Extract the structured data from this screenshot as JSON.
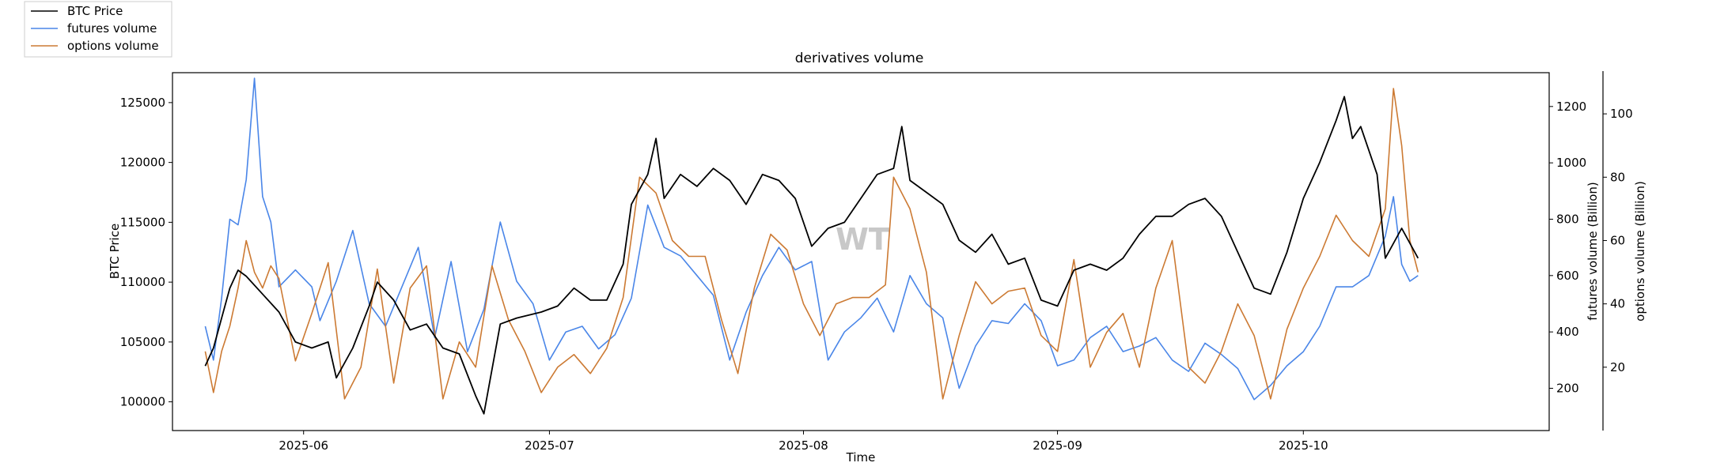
{
  "chart_data": {
    "type": "line",
    "title": "derivatives volume",
    "xlabel": "Time",
    "watermark": "WT",
    "x_range": [
      "2025-05-16",
      "2025-10-31"
    ],
    "x_ticks": [
      {
        "date": "2025-06-01",
        "label": "2025-06"
      },
      {
        "date": "2025-07-01",
        "label": "2025-07"
      },
      {
        "date": "2025-08-01",
        "label": "2025-08"
      },
      {
        "date": "2025-09-01",
        "label": "2025-09"
      },
      {
        "date": "2025-10-01",
        "label": "2025-10"
      }
    ],
    "legend_position": "top-left",
    "grid": false,
    "axes": {
      "left": {
        "label": "BTC Price",
        "range": [
          97600,
          127500
        ],
        "ticks": [
          100000,
          105000,
          110000,
          115000,
          120000,
          125000
        ]
      },
      "right": {
        "label": "futures volume (Billion)",
        "range": [
          50,
          1320
        ],
        "ticks": [
          200,
          400,
          600,
          800,
          1000,
          1200
        ]
      },
      "right2": {
        "label": "options volume (Billion)",
        "range": [
          0,
          113
        ],
        "ticks": [
          20,
          40,
          60,
          80,
          100
        ]
      }
    },
    "series": [
      {
        "name": "BTC Price",
        "axis": "left",
        "color": "#000000",
        "points": [
          [
            "2025-05-20",
            103000
          ],
          [
            "2025-05-21",
            104500
          ],
          [
            "2025-05-22",
            107000
          ],
          [
            "2025-05-23",
            109500
          ],
          [
            "2025-05-24",
            111000
          ],
          [
            "2025-05-25",
            110500
          ],
          [
            "2025-05-27",
            109000
          ],
          [
            "2025-05-29",
            107500
          ],
          [
            "2025-05-31",
            105000
          ],
          [
            "2025-06-02",
            104500
          ],
          [
            "2025-06-04",
            105000
          ],
          [
            "2025-06-05",
            102000
          ],
          [
            "2025-06-07",
            104500
          ],
          [
            "2025-06-09",
            108000
          ],
          [
            "2025-06-10",
            110000
          ],
          [
            "2025-06-12",
            108500
          ],
          [
            "2025-06-14",
            106000
          ],
          [
            "2025-06-16",
            106500
          ],
          [
            "2025-06-18",
            104500
          ],
          [
            "2025-06-20",
            104000
          ],
          [
            "2025-06-22",
            100500
          ],
          [
            "2025-06-23",
            99000
          ],
          [
            "2025-06-25",
            106500
          ],
          [
            "2025-06-27",
            107000
          ],
          [
            "2025-06-30",
            107500
          ],
          [
            "2025-07-02",
            108000
          ],
          [
            "2025-07-04",
            109500
          ],
          [
            "2025-07-06",
            108500
          ],
          [
            "2025-07-08",
            108500
          ],
          [
            "2025-07-10",
            111500
          ],
          [
            "2025-07-11",
            116500
          ],
          [
            "2025-07-13",
            119000
          ],
          [
            "2025-07-14",
            122000
          ],
          [
            "2025-07-15",
            117000
          ],
          [
            "2025-07-17",
            119000
          ],
          [
            "2025-07-19",
            118000
          ],
          [
            "2025-07-21",
            119500
          ],
          [
            "2025-07-23",
            118500
          ],
          [
            "2025-07-25",
            116500
          ],
          [
            "2025-07-27",
            119000
          ],
          [
            "2025-07-29",
            118500
          ],
          [
            "2025-07-31",
            117000
          ],
          [
            "2025-08-02",
            113000
          ],
          [
            "2025-08-04",
            114500
          ],
          [
            "2025-08-06",
            115000
          ],
          [
            "2025-08-08",
            117000
          ],
          [
            "2025-08-10",
            119000
          ],
          [
            "2025-08-12",
            119500
          ],
          [
            "2025-08-13",
            123000
          ],
          [
            "2025-08-14",
            118500
          ],
          [
            "2025-08-16",
            117500
          ],
          [
            "2025-08-18",
            116500
          ],
          [
            "2025-08-20",
            113500
          ],
          [
            "2025-08-22",
            112500
          ],
          [
            "2025-08-24",
            114000
          ],
          [
            "2025-08-26",
            111500
          ],
          [
            "2025-08-28",
            112000
          ],
          [
            "2025-08-30",
            108500
          ],
          [
            "2025-09-01",
            108000
          ],
          [
            "2025-09-03",
            111000
          ],
          [
            "2025-09-05",
            111500
          ],
          [
            "2025-09-07",
            111000
          ],
          [
            "2025-09-09",
            112000
          ],
          [
            "2025-09-11",
            114000
          ],
          [
            "2025-09-13",
            115500
          ],
          [
            "2025-09-15",
            115500
          ],
          [
            "2025-09-17",
            116500
          ],
          [
            "2025-09-19",
            117000
          ],
          [
            "2025-09-21",
            115500
          ],
          [
            "2025-09-23",
            112500
          ],
          [
            "2025-09-25",
            109500
          ],
          [
            "2025-09-27",
            109000
          ],
          [
            "2025-09-29",
            112500
          ],
          [
            "2025-10-01",
            117000
          ],
          [
            "2025-10-03",
            120000
          ],
          [
            "2025-10-05",
            123500
          ],
          [
            "2025-10-06",
            125500
          ],
          [
            "2025-10-07",
            122000
          ],
          [
            "2025-10-08",
            123000
          ],
          [
            "2025-10-10",
            119000
          ],
          [
            "2025-10-11",
            112000
          ],
          [
            "2025-10-13",
            114500
          ],
          [
            "2025-10-15",
            112000
          ]
        ]
      },
      {
        "name": "futures volume",
        "axis": "right",
        "color": "#4a86e8",
        "points": [
          [
            "2025-05-20",
            420
          ],
          [
            "2025-05-21",
            300
          ],
          [
            "2025-05-22",
            520
          ],
          [
            "2025-05-23",
            800
          ],
          [
            "2025-05-24",
            780
          ],
          [
            "2025-05-25",
            940
          ],
          [
            "2025-05-26",
            1300
          ],
          [
            "2025-05-27",
            880
          ],
          [
            "2025-05-28",
            790
          ],
          [
            "2025-05-29",
            560
          ],
          [
            "2025-05-31",
            620
          ],
          [
            "2025-06-02",
            560
          ],
          [
            "2025-06-03",
            440
          ],
          [
            "2025-06-05",
            580
          ],
          [
            "2025-06-07",
            760
          ],
          [
            "2025-06-09",
            500
          ],
          [
            "2025-06-11",
            420
          ],
          [
            "2025-06-13",
            560
          ],
          [
            "2025-06-15",
            700
          ],
          [
            "2025-06-17",
            380
          ],
          [
            "2025-06-19",
            650
          ],
          [
            "2025-06-21",
            330
          ],
          [
            "2025-06-23",
            480
          ],
          [
            "2025-06-25",
            790
          ],
          [
            "2025-06-27",
            580
          ],
          [
            "2025-06-29",
            500
          ],
          [
            "2025-07-01",
            300
          ],
          [
            "2025-07-03",
            400
          ],
          [
            "2025-07-05",
            420
          ],
          [
            "2025-07-07",
            340
          ],
          [
            "2025-07-09",
            390
          ],
          [
            "2025-07-11",
            520
          ],
          [
            "2025-07-13",
            850
          ],
          [
            "2025-07-15",
            700
          ],
          [
            "2025-07-17",
            670
          ],
          [
            "2025-07-19",
            600
          ],
          [
            "2025-07-21",
            530
          ],
          [
            "2025-07-23",
            300
          ],
          [
            "2025-07-25",
            470
          ],
          [
            "2025-07-27",
            600
          ],
          [
            "2025-07-29",
            700
          ],
          [
            "2025-07-31",
            620
          ],
          [
            "2025-08-02",
            650
          ],
          [
            "2025-08-04",
            300
          ],
          [
            "2025-08-06",
            400
          ],
          [
            "2025-08-08",
            450
          ],
          [
            "2025-08-10",
            520
          ],
          [
            "2025-08-12",
            400
          ],
          [
            "2025-08-14",
            600
          ],
          [
            "2025-08-16",
            500
          ],
          [
            "2025-08-18",
            450
          ],
          [
            "2025-08-20",
            200
          ],
          [
            "2025-08-22",
            350
          ],
          [
            "2025-08-24",
            440
          ],
          [
            "2025-08-26",
            430
          ],
          [
            "2025-08-28",
            500
          ],
          [
            "2025-08-30",
            440
          ],
          [
            "2025-09-01",
            280
          ],
          [
            "2025-09-03",
            300
          ],
          [
            "2025-09-05",
            380
          ],
          [
            "2025-09-07",
            420
          ],
          [
            "2025-09-09",
            330
          ],
          [
            "2025-09-11",
            350
          ],
          [
            "2025-09-13",
            380
          ],
          [
            "2025-09-15",
            300
          ],
          [
            "2025-09-17",
            260
          ],
          [
            "2025-09-19",
            360
          ],
          [
            "2025-09-21",
            320
          ],
          [
            "2025-09-23",
            270
          ],
          [
            "2025-09-25",
            160
          ],
          [
            "2025-09-27",
            210
          ],
          [
            "2025-09-29",
            280
          ],
          [
            "2025-10-01",
            330
          ],
          [
            "2025-10-03",
            420
          ],
          [
            "2025-10-05",
            560
          ],
          [
            "2025-10-07",
            560
          ],
          [
            "2025-10-09",
            600
          ],
          [
            "2025-10-11",
            740
          ],
          [
            "2025-10-12",
            880
          ],
          [
            "2025-10-13",
            640
          ],
          [
            "2025-10-14",
            580
          ],
          [
            "2025-10-15",
            600
          ]
        ]
      },
      {
        "name": "options volume",
        "axis": "right2",
        "color": "#cc7a33",
        "points": [
          [
            "2025-05-20",
            25
          ],
          [
            "2025-05-21",
            12
          ],
          [
            "2025-05-22",
            25
          ],
          [
            "2025-05-23",
            33
          ],
          [
            "2025-05-24",
            45
          ],
          [
            "2025-05-25",
            60
          ],
          [
            "2025-05-26",
            50
          ],
          [
            "2025-05-27",
            45
          ],
          [
            "2025-05-28",
            52
          ],
          [
            "2025-05-29",
            48
          ],
          [
            "2025-05-31",
            22
          ],
          [
            "2025-06-02",
            37
          ],
          [
            "2025-06-04",
            53
          ],
          [
            "2025-06-06",
            10
          ],
          [
            "2025-06-08",
            20
          ],
          [
            "2025-06-10",
            51
          ],
          [
            "2025-06-12",
            15
          ],
          [
            "2025-06-14",
            45
          ],
          [
            "2025-06-16",
            52
          ],
          [
            "2025-06-18",
            10
          ],
          [
            "2025-06-20",
            28
          ],
          [
            "2025-06-22",
            20
          ],
          [
            "2025-06-24",
            52
          ],
          [
            "2025-06-26",
            35
          ],
          [
            "2025-06-28",
            25
          ],
          [
            "2025-06-30",
            12
          ],
          [
            "2025-07-02",
            20
          ],
          [
            "2025-07-04",
            24
          ],
          [
            "2025-07-06",
            18
          ],
          [
            "2025-07-08",
            26
          ],
          [
            "2025-07-10",
            42
          ],
          [
            "2025-07-12",
            80
          ],
          [
            "2025-07-14",
            75
          ],
          [
            "2025-07-16",
            60
          ],
          [
            "2025-07-18",
            55
          ],
          [
            "2025-07-20",
            55
          ],
          [
            "2025-07-22",
            35
          ],
          [
            "2025-07-24",
            18
          ],
          [
            "2025-07-26",
            45
          ],
          [
            "2025-07-28",
            62
          ],
          [
            "2025-07-30",
            57
          ],
          [
            "2025-08-01",
            40
          ],
          [
            "2025-08-03",
            30
          ],
          [
            "2025-08-05",
            40
          ],
          [
            "2025-08-07",
            42
          ],
          [
            "2025-08-09",
            42
          ],
          [
            "2025-08-11",
            46
          ],
          [
            "2025-08-12",
            80
          ],
          [
            "2025-08-14",
            70
          ],
          [
            "2025-08-16",
            50
          ],
          [
            "2025-08-18",
            10
          ],
          [
            "2025-08-20",
            30
          ],
          [
            "2025-08-22",
            47
          ],
          [
            "2025-08-24",
            40
          ],
          [
            "2025-08-26",
            44
          ],
          [
            "2025-08-28",
            45
          ],
          [
            "2025-08-30",
            30
          ],
          [
            "2025-09-01",
            25
          ],
          [
            "2025-09-03",
            54
          ],
          [
            "2025-09-05",
            20
          ],
          [
            "2025-09-07",
            31
          ],
          [
            "2025-09-09",
            37
          ],
          [
            "2025-09-11",
            20
          ],
          [
            "2025-09-13",
            45
          ],
          [
            "2025-09-15",
            60
          ],
          [
            "2025-09-17",
            20
          ],
          [
            "2025-09-19",
            15
          ],
          [
            "2025-09-21",
            25
          ],
          [
            "2025-09-23",
            40
          ],
          [
            "2025-09-25",
            30
          ],
          [
            "2025-09-27",
            10
          ],
          [
            "2025-09-29",
            32
          ],
          [
            "2025-10-01",
            45
          ],
          [
            "2025-10-03",
            55
          ],
          [
            "2025-10-05",
            68
          ],
          [
            "2025-10-07",
            60
          ],
          [
            "2025-10-09",
            55
          ],
          [
            "2025-10-11",
            70
          ],
          [
            "2025-10-12",
            108
          ],
          [
            "2025-10-13",
            90
          ],
          [
            "2025-10-14",
            60
          ],
          [
            "2025-10-15",
            50
          ]
        ]
      }
    ]
  }
}
